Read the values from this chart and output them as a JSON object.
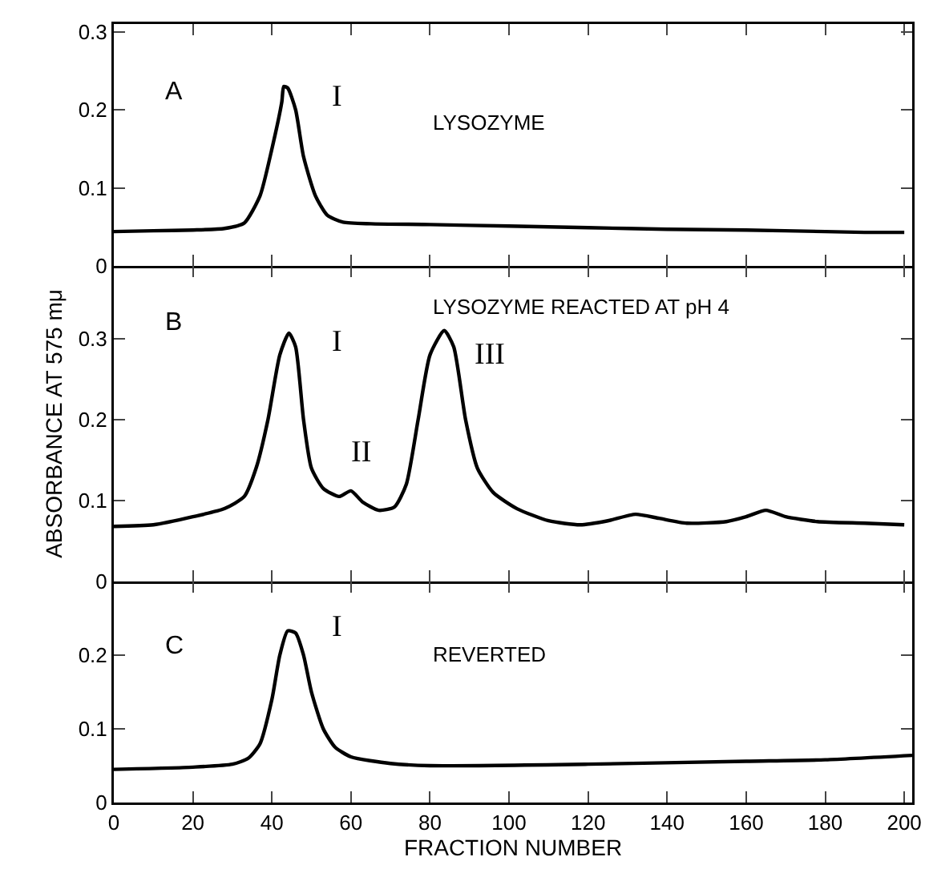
{
  "chart_data": [
    {
      "type": "line",
      "x": [
        0,
        10,
        20,
        28,
        33,
        37,
        40,
        42.5,
        43,
        44,
        46,
        48,
        51,
        54,
        58,
        65,
        80,
        100,
        120,
        140,
        160,
        180,
        190,
        200
      ],
      "series": [
        {
          "color": "#000000",
          "values": [
            0.044,
            0.045,
            0.046,
            0.048,
            0.055,
            0.09,
            0.15,
            0.21,
            0.23,
            0.228,
            0.2,
            0.14,
            0.09,
            0.065,
            0.056,
            0.054,
            0.053,
            0.051,
            0.049,
            0.047,
            0.046,
            0.044,
            0.043,
            0.043
          ]
        }
      ],
      "xlim": [
        0,
        202
      ],
      "xticks": [
        0,
        20,
        40,
        60,
        80,
        100,
        120,
        140,
        160,
        180,
        200
      ],
      "ylim": [
        0,
        0.31
      ],
      "yticks": [
        0,
        0.1,
        0.2,
        0.3
      ],
      "tick_labels": "y",
      "annotations": [
        "A",
        "LYSOZYME",
        "I"
      ],
      "grid": false
    },
    {
      "type": "line",
      "x": [
        0,
        10,
        20,
        28,
        33,
        36,
        39,
        42,
        44.3,
        46,
        48,
        50,
        53,
        57,
        60,
        63,
        67,
        71,
        74,
        77,
        80,
        83.6,
        86,
        89,
        92,
        96,
        102,
        110,
        118,
        125,
        132,
        138,
        145,
        155,
        160,
        165,
        170,
        178,
        190,
        200
      ],
      "series": [
        {
          "color": "#000000",
          "values": [
            0.068,
            0.07,
            0.08,
            0.09,
            0.105,
            0.14,
            0.2,
            0.28,
            0.307,
            0.29,
            0.2,
            0.14,
            0.115,
            0.105,
            0.112,
            0.098,
            0.088,
            0.092,
            0.12,
            0.2,
            0.28,
            0.31,
            0.29,
            0.2,
            0.14,
            0.11,
            0.09,
            0.075,
            0.07,
            0.075,
            0.083,
            0.078,
            0.072,
            0.074,
            0.08,
            0.088,
            0.08,
            0.074,
            0.072,
            0.07
          ]
        }
      ],
      "xlim": [
        0,
        202
      ],
      "xticks": [
        0,
        20,
        40,
        60,
        80,
        100,
        120,
        140,
        160,
        180,
        200
      ],
      "ylim": [
        0,
        0.39
      ],
      "yticks": [
        0,
        0.1,
        0.2,
        0.3
      ],
      "tick_labels": "y",
      "ylabel": "ABSORBANCE AT 575 mμ",
      "annotations": [
        "B",
        "LYSOZYME REACTED AT pH 4",
        "I",
        "II",
        "III"
      ],
      "grid": false
    },
    {
      "type": "line",
      "x": [
        0,
        20,
        30,
        34,
        37,
        40,
        42,
        44,
        46,
        48,
        50,
        53,
        56,
        60,
        70,
        80,
        120,
        160,
        180,
        202
      ],
      "series": [
        {
          "color": "#000000",
          "values": [
            0.045,
            0.048,
            0.052,
            0.06,
            0.08,
            0.14,
            0.2,
            0.233,
            0.23,
            0.2,
            0.15,
            0.1,
            0.075,
            0.062,
            0.053,
            0.05,
            0.052,
            0.056,
            0.058,
            0.064
          ]
        }
      ],
      "xlim": [
        0,
        202
      ],
      "xticks": [
        0,
        20,
        40,
        60,
        80,
        100,
        120,
        140,
        160,
        180,
        200
      ],
      "ylim": [
        0,
        0.3
      ],
      "yticks": [
        0,
        0.1,
        0.2
      ],
      "xlabel": "FRACTION NUMBER",
      "annotations": [
        "C",
        "REVERTED",
        "I"
      ],
      "grid": false
    }
  ]
}
